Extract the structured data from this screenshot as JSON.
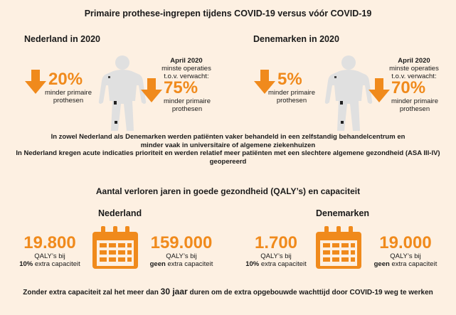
{
  "title": "Primaire prothese-ingrepen tijdens COVID-19 versus vóór COVID-19",
  "nl": {
    "country": "Nederland in 2020",
    "pct_left": "20%",
    "left_caption_1": "minder primaire",
    "left_caption_2": "prothesen",
    "april": "April 2020",
    "april_2": "minste operaties",
    "april_3": "t.o.v. verwacht:",
    "pct_right": "75%",
    "right_caption_1": "minder primaire",
    "right_caption_2": "prothesen"
  },
  "dk": {
    "country": "Denemarken in 2020",
    "pct_left": "5%",
    "left_caption_1": "minder primaire",
    "left_caption_2": "prothesen",
    "april": "April 2020",
    "april_2": "minste operaties",
    "april_3": "t.o.v. verwacht:",
    "pct_right": "70%",
    "right_caption_1": "minder primaire",
    "right_caption_2": "prothesen"
  },
  "middle": {
    "line1": "In zowel Nederland als Denemarken werden patiënten vaker behandeld in een zelfstandig behandelcentrum en",
    "line2": "minder vaak in universitaire of algemene ziekenhuizen",
    "line3": "In Nederland kregen acute indicaties prioriteit en werden relatief meer patiënten met een slechtere algemene gezondheid (ASA III-IV) geopereerd"
  },
  "section_title": "Aantal verloren jaren in goede gezondheid (QALY’s) en capaciteit",
  "qaly": {
    "nl_label": "Nederland",
    "dk_label": "Denemarken",
    "nl_a_num": "19.800",
    "nl_a_cap1": "QALY’s bij",
    "nl_a_bold": "10%",
    "nl_a_cap2": " extra capaciteit",
    "nl_b_num": "159.000",
    "nl_b_cap1": "QALY’s bij",
    "nl_b_bold": "geen",
    "nl_b_cap2": " extra capaciteit",
    "dk_a_num": "1.700",
    "dk_a_cap1": "QALY’s bij",
    "dk_a_bold": "10%",
    "dk_a_cap2": " extra capaciteit",
    "dk_b_num": "19.000",
    "dk_b_cap1": "QALY’s bij",
    "dk_b_bold": "geen",
    "dk_b_cap2": " extra capaciteit"
  },
  "footer": {
    "pre": "Zonder extra capaciteit zal het meer dan ",
    "hl": "30 jaar",
    "post": " duren om de extra opgebouwde wachttijd door COVID-19 weg te werken"
  },
  "colors": {
    "accent": "#f08a1c",
    "background": "#fdf0e2",
    "body": "#e2e2e2"
  },
  "icons": [
    "down-arrow-icon",
    "human-body-icon",
    "calendar-icon"
  ]
}
